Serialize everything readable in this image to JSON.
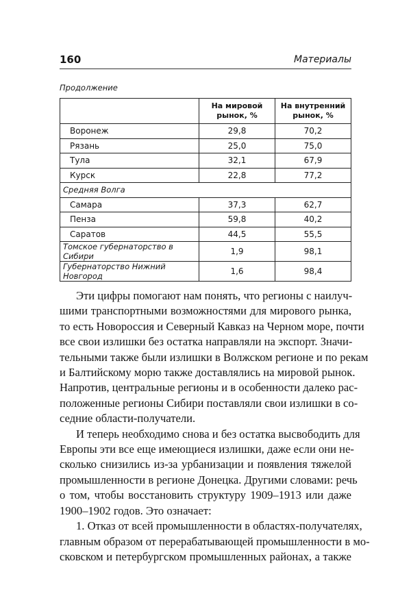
{
  "header": {
    "page_number": "160",
    "section": "Материалы"
  },
  "table": {
    "caption": "Продолжение",
    "columns": [
      "",
      "На мировой рынок, %",
      "На внутренний рынок, %"
    ],
    "rows": [
      {
        "type": "row",
        "name": "Воронеж",
        "world": "29,8",
        "domestic": "70,2"
      },
      {
        "type": "row",
        "name": "Рязань",
        "world": "25,0",
        "domestic": "75,0"
      },
      {
        "type": "row",
        "name": "Тула",
        "world": "32,1",
        "domestic": "67,9"
      },
      {
        "type": "row",
        "name": "Курск",
        "world": "22,8",
        "domestic": "77,2"
      },
      {
        "type": "group",
        "name": "Средняя Волга"
      },
      {
        "type": "row",
        "name": "Самара",
        "world": "37,3",
        "domestic": "62,7"
      },
      {
        "type": "row",
        "name": "Пенза",
        "world": "59,8",
        "domestic": "40,2"
      },
      {
        "type": "row",
        "name": "Саратов",
        "world": "44,5",
        "domestic": "55,5"
      },
      {
        "type": "italic",
        "name": "Томское губернаторство в Сибири",
        "world": "1,9",
        "domestic": "98,1"
      },
      {
        "type": "italic",
        "name": "Губернаторство Нижний Новгород",
        "world": "1,6",
        "domestic": "98,4"
      }
    ]
  },
  "paragraphs": [
    [
      "Эти цифры помогают нам понять, что регионы с наилуч-",
      "шими транспортными возможностями для мирового рынка,",
      "то есть Новороссия и Северный Кавказ на Черном море, почти",
      "все свои излишки без остатка направляли на экспорт. Значи-",
      "тельными также были излишки в Волжском регионе и по рекам",
      "и Балтийскому морю также доставлялись на мировой рынок.",
      "Напротив, центральные регионы и в особенности далеко рас-",
      "положенные регионы Сибири поставляли свои излишки в со-",
      "седние области-получатели."
    ],
    [
      "И теперь необходимо снова и без остатка высвободить для",
      "Европы эти все еще имеющиеся излишки, даже если они не-",
      "сколько снизились из-за урбанизации и появления тяжелой",
      "промышленности в регионе Донецка. Другими словами: речь",
      "о том, чтобы восстановить структуру 1909–1913 или даже",
      "1900–1902 годов. Это означает:"
    ],
    [
      "1. Отказ от всей промышленности в областях-получателях,",
      "главным образом от перерабатывающей промышленности в мо-",
      "сковском и петербургском промышленных районах, а также"
    ]
  ]
}
